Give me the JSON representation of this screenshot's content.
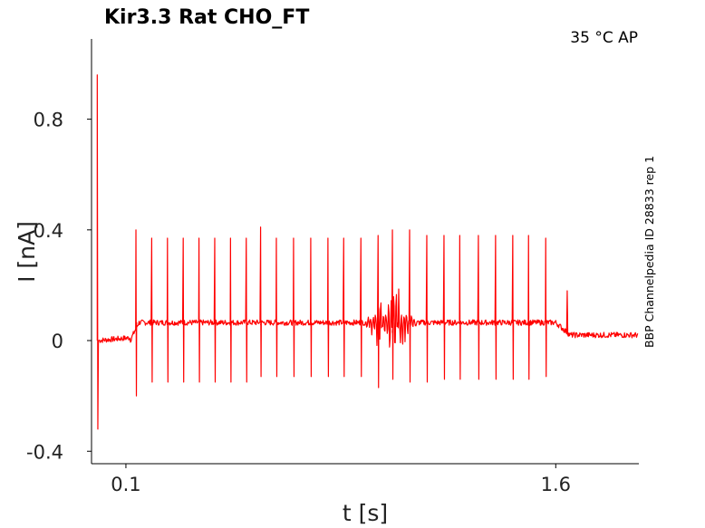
{
  "chart_data": {
    "type": "line",
    "title": "Kir3.3  Rat  CHO_FT",
    "condition": "35 °C  AP",
    "side_label": "BBP Channelpedia ID 28833 rep 1",
    "xlabel": "t [s]",
    "ylabel": "I [nA]",
    "xlim": [
      -0.02,
      1.89
    ],
    "ylim": [
      -0.445,
      1.09
    ],
    "xticks": [
      0.1,
      1.6
    ],
    "xtick_labels": [
      "0.1",
      "1.6"
    ],
    "yticks": [
      0.8,
      0.4,
      0,
      -0.4
    ],
    "ytick_labels": [
      "0.8",
      "0.4",
      "0",
      "-0.4"
    ],
    "grid": false,
    "series": [
      {
        "color": "#ff0000",
        "initial_transient": {
          "t": 0.0,
          "peak": 0.96,
          "trough": -0.32
        },
        "baseline_pre": {
          "t_start": 0.0,
          "t_end": 0.115,
          "value": 0.0
        },
        "plateau": {
          "t_start": 0.115,
          "t_end": 1.6,
          "value": 0.065
        },
        "baseline_post": {
          "t_start": 1.65,
          "t_end": 1.89,
          "value": 0.02
        },
        "spike_times": [
          0.135,
          0.19,
          0.245,
          0.3,
          0.355,
          0.41,
          0.465,
          0.52,
          0.57,
          0.625,
          0.685,
          0.745,
          0.805,
          0.86,
          0.92,
          0.98,
          1.03,
          1.09,
          1.15,
          1.21,
          1.265,
          1.33,
          1.39,
          1.45,
          1.505,
          1.565
        ],
        "spike_peaks": [
          0.4,
          0.37,
          0.37,
          0.37,
          0.37,
          0.37,
          0.37,
          0.37,
          0.41,
          0.37,
          0.37,
          0.37,
          0.37,
          0.37,
          0.37,
          0.38,
          0.4,
          0.4,
          0.38,
          0.38,
          0.38,
          0.38,
          0.38,
          0.38,
          0.38,
          0.37
        ],
        "spike_troughs": [
          -0.2,
          -0.15,
          -0.15,
          -0.15,
          -0.15,
          -0.15,
          -0.15,
          -0.15,
          -0.13,
          -0.13,
          -0.13,
          -0.13,
          -0.13,
          -0.13,
          -0.13,
          -0.17,
          -0.14,
          -0.15,
          -0.15,
          -0.14,
          -0.14,
          -0.14,
          -0.14,
          -0.14,
          -0.14,
          -0.13
        ],
        "oscillation_burst": {
          "t_start": 0.93,
          "t_end": 1.12,
          "amplitude": 0.12
        },
        "end_transient": {
          "t": 1.64,
          "value": 0.18
        }
      }
    ]
  }
}
